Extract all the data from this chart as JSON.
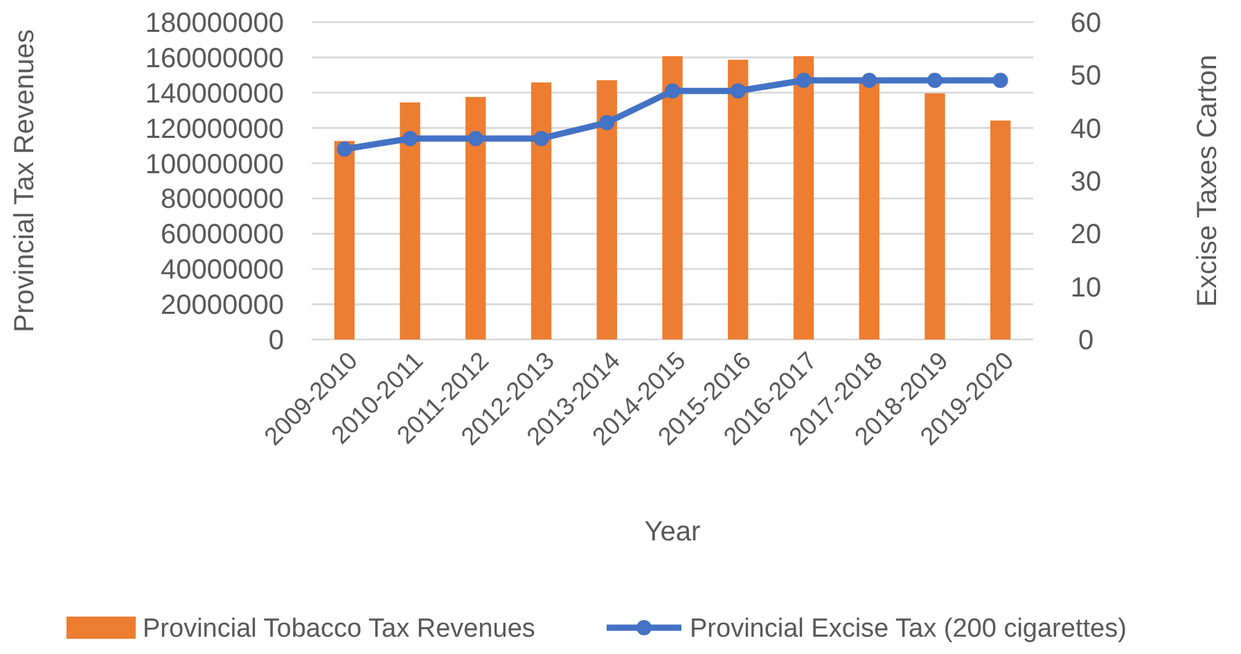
{
  "chart_data": {
    "type": "bar",
    "xlabel": "Year",
    "ylabel": "Provincial Tax Revenues",
    "y2label": "Excise Taxes Carton",
    "categories": [
      "2009-2010",
      "2010-2011",
      "2011-2012",
      "2012-2013",
      "2013-2014",
      "2014-2015",
      "2015-2016",
      "2016-2017",
      "2017-2018",
      "2018-2019",
      "2019-2020"
    ],
    "series": [
      {
        "name": "Provincial Tobacco Tax Revenues",
        "color": "#ed7d31",
        "values": [
          112600000,
          134500000,
          137600000,
          145800000,
          147100000,
          160700000,
          158700000,
          160700000,
          146000000,
          139600000,
          124200000
        ]
      },
      {
        "name": "Provincial Excise Tax (200 cigarettes)",
        "type": "line",
        "axis": "y2",
        "color": "#4472c4",
        "marker": "circle",
        "values": [
          36,
          38,
          38,
          38,
          41,
          47,
          47,
          49,
          49,
          49,
          49
        ]
      }
    ],
    "ylim": [
      0,
      180000000
    ],
    "yticks": [
      0,
      20000000,
      40000000,
      60000000,
      80000000,
      100000000,
      120000000,
      140000000,
      160000000,
      180000000
    ],
    "y2lim": [
      0,
      60
    ],
    "y2ticks": [
      0,
      10,
      20,
      30,
      40,
      50,
      60
    ],
    "grid": "y",
    "legend": "bottom"
  }
}
